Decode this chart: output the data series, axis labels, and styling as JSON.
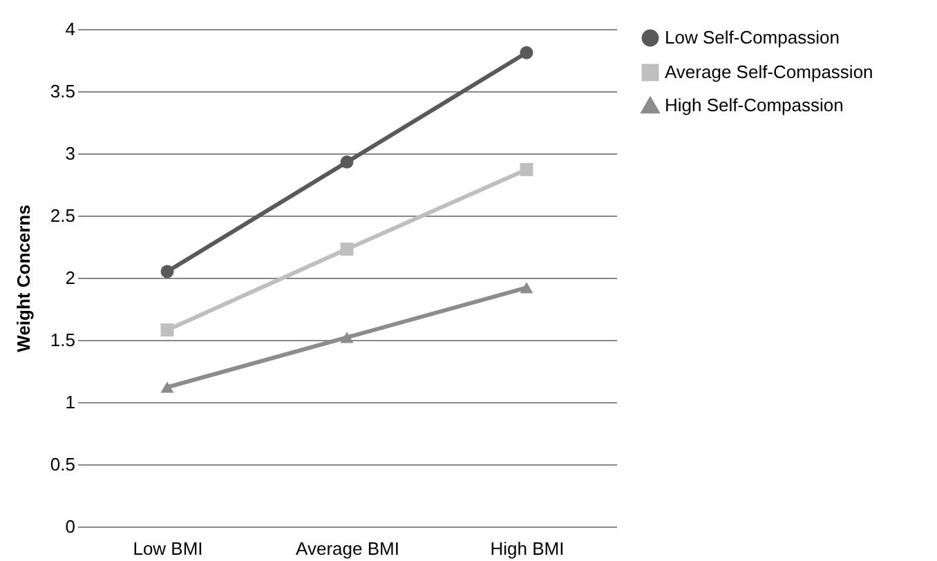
{
  "chart_data": {
    "type": "line",
    "ylabel": "Weight Concerns",
    "categories": [
      "Low BMI",
      "Average BMI",
      "High BMI"
    ],
    "series": [
      {
        "name": "Low Self-Compassion",
        "color": "#595959",
        "marker": "circle",
        "values": [
          2.05,
          2.93,
          3.81
        ]
      },
      {
        "name": "Average Self-Compassion",
        "color": "#bfbfbf",
        "marker": "square",
        "values": [
          1.58,
          2.23,
          2.87
        ]
      },
      {
        "name": "High Self-Compassion",
        "color": "#8c8c8c",
        "marker": "triangle",
        "values": [
          1.12,
          1.52,
          1.92
        ]
      }
    ],
    "ylim": [
      0,
      4
    ],
    "yticks": [
      0,
      0.5,
      1,
      1.5,
      2,
      2.5,
      3,
      3.5,
      4
    ],
    "grid": "y",
    "legend": "right",
    "line_style": "solid"
  }
}
